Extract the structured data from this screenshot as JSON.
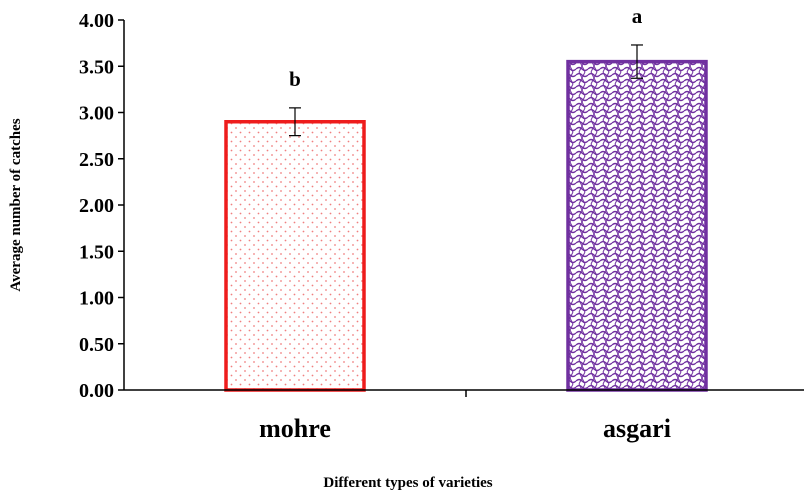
{
  "chart_data": {
    "type": "bar",
    "categories": [
      "mohre",
      "asgari"
    ],
    "values": [
      2.9,
      3.55
    ],
    "errors": [
      0.15,
      0.18
    ],
    "significance_letters": [
      "b",
      "a"
    ],
    "xlabel": "Different types of varieties",
    "ylabel": "Average number of catches",
    "ylim": [
      0,
      4
    ],
    "yticks": [
      "0.00",
      "0.50",
      "1.00",
      "1.50",
      "2.00",
      "2.50",
      "3.00",
      "3.50",
      "4.00"
    ],
    "grid": false,
    "bar_styles": [
      {
        "edge_color": "#ee1c1c",
        "pattern": "dots",
        "pattern_color": "#f08080"
      },
      {
        "edge_color": "#7030a0",
        "pattern": "waves",
        "pattern_color": "#7030a0"
      }
    ]
  }
}
